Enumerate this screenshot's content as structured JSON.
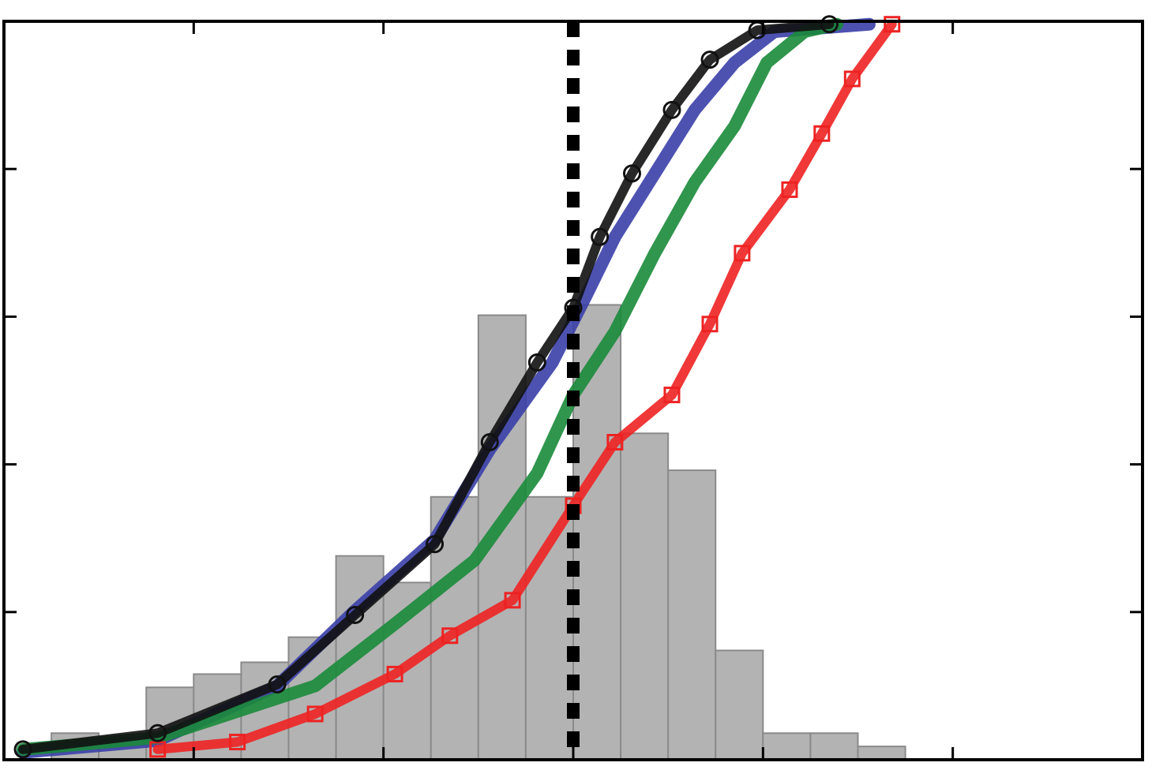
{
  "chart_data": {
    "type": "histogram-cdf",
    "bins": [
      0.25,
      0.5,
      0.75,
      1.0,
      1.25,
      1.5,
      1.75,
      2.0,
      2.25,
      2.5,
      2.75,
      3.0,
      3.25,
      3.5,
      3.75,
      4.0,
      4.25,
      4.5,
      4.75
    ],
    "counts": [
      0.18,
      0.1,
      0.49,
      0.58,
      0.66,
      0.83,
      1.38,
      1.2,
      1.78,
      3.01,
      1.78,
      3.08,
      2.21,
      1.96,
      0.74,
      0.18,
      0.18,
      0.09
    ],
    "bar_color": "#b3b3b3",
    "vline": 3.0,
    "vline_color": "#000000",
    "xlim": [
      0,
      6
    ],
    "xticks": [
      1,
      2,
      3,
      4,
      5
    ],
    "ylim": [
      0,
      5
    ],
    "yticks": [
      1,
      2,
      3,
      4
    ],
    "series": [
      {
        "color": "#3a3fa8",
        "marker": "none",
        "x": [
          0.1,
          0.81,
          1.44,
          1.85,
          2.27,
          2.56,
          2.89,
          3.06,
          3.22,
          3.43,
          3.64,
          3.85,
          4.06,
          4.56
        ],
        "values": [
          0.05,
          0.13,
          0.5,
          1.01,
          1.49,
          2.1,
          2.69,
          3.12,
          3.54,
          3.97,
          4.4,
          4.72,
          4.93,
          4.98
        ]
      },
      {
        "color": "#1a8a3a",
        "marker": "none",
        "x": [
          0.1,
          0.81,
          1.64,
          2.06,
          2.48,
          2.81,
          3.0,
          3.22,
          3.43,
          3.64,
          3.85,
          4.02,
          4.22,
          4.39
        ],
        "values": [
          0.07,
          0.15,
          0.5,
          0.92,
          1.35,
          1.94,
          2.47,
          2.9,
          3.43,
          3.91,
          4.29,
          4.72,
          4.93,
          4.98
        ]
      },
      {
        "color": "#ee2222",
        "marker": "square",
        "x": [
          0.81,
          1.23,
          1.64,
          2.06,
          2.35,
          2.68,
          3.0,
          3.22,
          3.52,
          3.72,
          3.89,
          4.14,
          4.31,
          4.47,
          4.68
        ],
        "values": [
          0.07,
          0.12,
          0.31,
          0.58,
          0.84,
          1.08,
          1.72,
          2.15,
          2.47,
          2.95,
          3.43,
          3.86,
          4.24,
          4.61,
          4.98
        ]
      },
      {
        "color": "#111111",
        "marker": "circle",
        "x": [
          0.1,
          0.81,
          1.44,
          1.85,
          2.27,
          2.56,
          2.81,
          3.0,
          3.14,
          3.31,
          3.52,
          3.72,
          3.97,
          4.35
        ],
        "values": [
          0.07,
          0.18,
          0.51,
          0.98,
          1.46,
          2.15,
          2.69,
          3.06,
          3.54,
          3.97,
          4.4,
          4.74,
          4.94,
          4.98
        ]
      }
    ]
  }
}
